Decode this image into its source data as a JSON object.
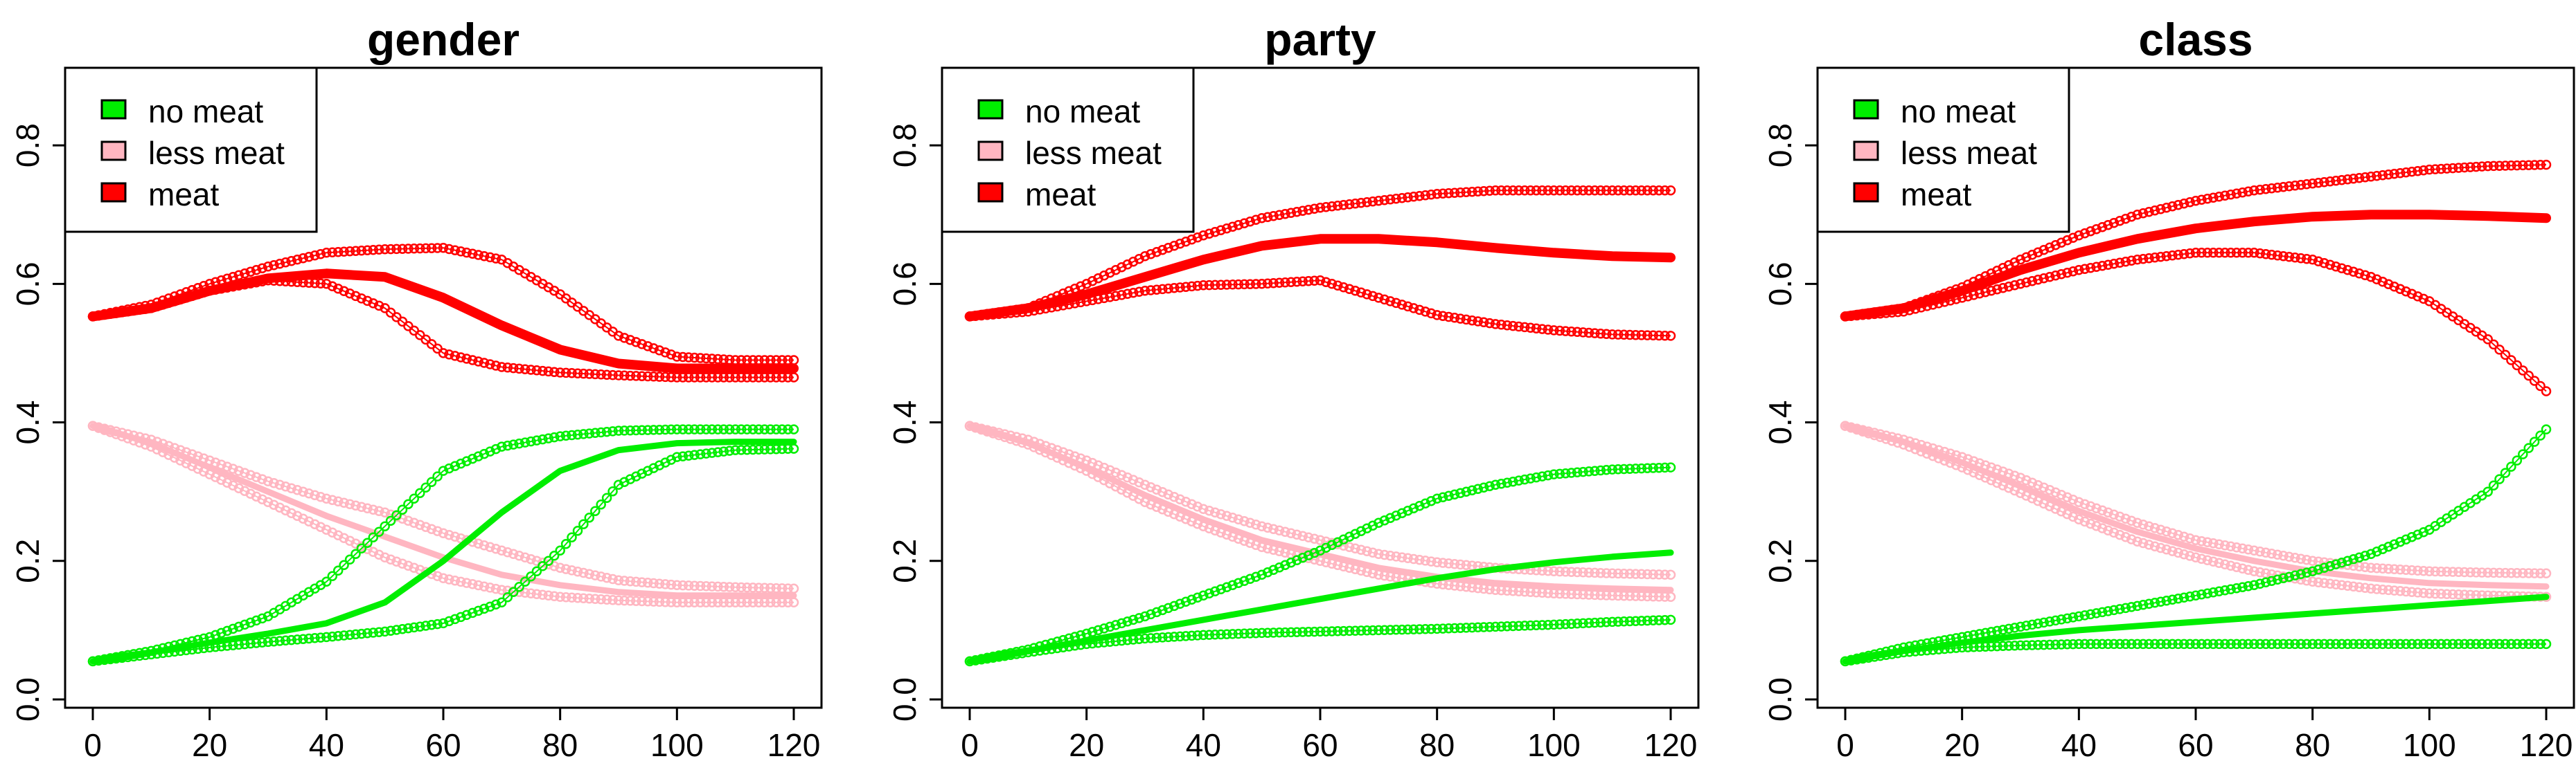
{
  "colors": {
    "no_meat": "#00ee00",
    "less_meat": "#ffb6c1",
    "meat": "#ff0000"
  },
  "chart_data": [
    {
      "type": "line",
      "title": "gender",
      "xlim": [
        0,
        120
      ],
      "ylim": [
        0,
        0.9
      ],
      "xticks": [
        0,
        20,
        40,
        60,
        80,
        100,
        120
      ],
      "yticks": [
        0.0,
        0.2,
        0.4,
        0.6,
        0.8
      ],
      "ytick_labels": [
        "0.0",
        "0.2",
        "0.4",
        "0.6",
        "0.8"
      ],
      "legend": {
        "placement": "top-left",
        "entries": [
          {
            "label": "no meat",
            "color": "#00ee00"
          },
          {
            "label": "less meat",
            "color": "#ffb6c1"
          },
          {
            "label": "meat",
            "color": "#ff0000"
          }
        ]
      },
      "series": [
        {
          "name": "meat",
          "style": "bold",
          "color": "#ff0000",
          "x": [
            0,
            10,
            20,
            30,
            40,
            50,
            60,
            70,
            80,
            90,
            100,
            110,
            120
          ],
          "y": [
            0.553,
            0.565,
            0.59,
            0.608,
            0.615,
            0.61,
            0.58,
            0.54,
            0.505,
            0.485,
            0.478,
            0.478,
            0.478
          ]
        },
        {
          "name": "meat",
          "style": "circles",
          "color": "#ff0000",
          "x": [
            0,
            10,
            20,
            30,
            40,
            50,
            60,
            70,
            80,
            90,
            100,
            110,
            120
          ],
          "y": [
            0.553,
            0.57,
            0.6,
            0.625,
            0.645,
            0.65,
            0.652,
            0.635,
            0.585,
            0.525,
            0.495,
            0.49,
            0.49
          ]
        },
        {
          "name": "meat",
          "style": "circles",
          "color": "#ff0000",
          "x": [
            0,
            10,
            20,
            30,
            40,
            50,
            60,
            70,
            80,
            90,
            100,
            110,
            120
          ],
          "y": [
            0.553,
            0.565,
            0.59,
            0.605,
            0.6,
            0.565,
            0.5,
            0.48,
            0.472,
            0.468,
            0.465,
            0.465,
            0.465
          ]
        },
        {
          "name": "less meat",
          "style": "circles",
          "color": "#ffb6c1",
          "x": [
            0,
            10,
            20,
            30,
            40,
            50,
            60,
            70,
            80,
            90,
            100,
            110,
            120
          ],
          "y": [
            0.395,
            0.375,
            0.345,
            0.315,
            0.29,
            0.27,
            0.24,
            0.215,
            0.19,
            0.172,
            0.165,
            0.162,
            0.16
          ]
        },
        {
          "name": "less meat",
          "style": "bold",
          "color": "#ffb6c1",
          "x": [
            0,
            10,
            20,
            30,
            40,
            50,
            60,
            70,
            80,
            90,
            100,
            110,
            120
          ],
          "y": [
            0.395,
            0.37,
            0.335,
            0.3,
            0.265,
            0.235,
            0.205,
            0.18,
            0.165,
            0.155,
            0.15,
            0.15,
            0.15
          ]
        },
        {
          "name": "less meat",
          "style": "circles",
          "color": "#ffb6c1",
          "x": [
            0,
            10,
            20,
            30,
            40,
            50,
            60,
            70,
            80,
            90,
            100,
            110,
            120
          ],
          "y": [
            0.395,
            0.365,
            0.325,
            0.285,
            0.245,
            0.205,
            0.175,
            0.158,
            0.148,
            0.143,
            0.14,
            0.14,
            0.14
          ]
        },
        {
          "name": "no meat",
          "style": "circles",
          "color": "#00ee00",
          "x": [
            0,
            10,
            20,
            30,
            40,
            50,
            60,
            70,
            80,
            90,
            100,
            110,
            120
          ],
          "y": [
            0.055,
            0.07,
            0.09,
            0.12,
            0.17,
            0.25,
            0.33,
            0.365,
            0.38,
            0.388,
            0.39,
            0.39,
            0.39
          ]
        },
        {
          "name": "no meat",
          "style": "bold",
          "color": "#00ee00",
          "x": [
            0,
            10,
            20,
            30,
            40,
            50,
            60,
            70,
            80,
            90,
            100,
            110,
            120
          ],
          "y": [
            0.055,
            0.068,
            0.082,
            0.095,
            0.11,
            0.14,
            0.2,
            0.27,
            0.33,
            0.36,
            0.37,
            0.372,
            0.372
          ]
        },
        {
          "name": "no meat",
          "style": "circles",
          "color": "#00ee00",
          "x": [
            0,
            10,
            20,
            30,
            40,
            50,
            60,
            70,
            80,
            90,
            100,
            110,
            120
          ],
          "y": [
            0.055,
            0.065,
            0.075,
            0.083,
            0.09,
            0.098,
            0.11,
            0.14,
            0.215,
            0.31,
            0.35,
            0.36,
            0.362
          ]
        }
      ]
    },
    {
      "type": "line",
      "title": "party",
      "xlim": [
        0,
        120
      ],
      "ylim": [
        0,
        0.9
      ],
      "xticks": [
        0,
        20,
        40,
        60,
        80,
        100,
        120
      ],
      "yticks": [
        0.0,
        0.2,
        0.4,
        0.6,
        0.8
      ],
      "ytick_labels": [
        "0.0",
        "0.2",
        "0.4",
        "0.6",
        "0.8"
      ],
      "legend": {
        "placement": "top-left",
        "entries": [
          {
            "label": "no meat",
            "color": "#00ee00"
          },
          {
            "label": "less meat",
            "color": "#ffb6c1"
          },
          {
            "label": "meat",
            "color": "#ff0000"
          }
        ]
      },
      "series": [
        {
          "name": "meat",
          "style": "circles",
          "color": "#ff0000",
          "x": [
            0,
            10,
            20,
            30,
            40,
            50,
            60,
            70,
            80,
            90,
            100,
            110,
            120
          ],
          "y": [
            0.553,
            0.565,
            0.6,
            0.64,
            0.67,
            0.695,
            0.71,
            0.72,
            0.73,
            0.735,
            0.735,
            0.735,
            0.735
          ]
        },
        {
          "name": "meat",
          "style": "bold",
          "color": "#ff0000",
          "x": [
            0,
            10,
            20,
            30,
            40,
            50,
            60,
            70,
            80,
            90,
            100,
            110,
            120
          ],
          "y": [
            0.553,
            0.565,
            0.585,
            0.61,
            0.635,
            0.655,
            0.665,
            0.665,
            0.66,
            0.652,
            0.645,
            0.64,
            0.638
          ]
        },
        {
          "name": "meat",
          "style": "circles",
          "color": "#ff0000",
          "x": [
            0,
            10,
            20,
            30,
            40,
            50,
            60,
            70,
            80,
            90,
            100,
            110,
            120
          ],
          "y": [
            0.553,
            0.56,
            0.575,
            0.59,
            0.598,
            0.6,
            0.605,
            0.58,
            0.555,
            0.542,
            0.533,
            0.527,
            0.525
          ]
        },
        {
          "name": "less meat",
          "style": "circles",
          "color": "#ffb6c1",
          "x": [
            0,
            10,
            20,
            30,
            40,
            50,
            60,
            70,
            80,
            90,
            100,
            110,
            120
          ],
          "y": [
            0.395,
            0.375,
            0.345,
            0.31,
            0.275,
            0.25,
            0.23,
            0.21,
            0.198,
            0.19,
            0.185,
            0.182,
            0.18
          ]
        },
        {
          "name": "less meat",
          "style": "bold",
          "color": "#ffb6c1",
          "x": [
            0,
            10,
            20,
            30,
            40,
            50,
            60,
            70,
            80,
            90,
            100,
            110,
            120
          ],
          "y": [
            0.395,
            0.37,
            0.335,
            0.295,
            0.26,
            0.23,
            0.21,
            0.19,
            0.177,
            0.168,
            0.163,
            0.16,
            0.158
          ]
        },
        {
          "name": "less meat",
          "style": "circles",
          "color": "#ffb6c1",
          "x": [
            0,
            10,
            20,
            30,
            40,
            50,
            60,
            70,
            80,
            90,
            100,
            110,
            120
          ],
          "y": [
            0.395,
            0.368,
            0.33,
            0.285,
            0.25,
            0.22,
            0.2,
            0.18,
            0.167,
            0.158,
            0.153,
            0.15,
            0.148
          ]
        },
        {
          "name": "no meat",
          "style": "circles",
          "color": "#00ee00",
          "x": [
            0,
            10,
            20,
            30,
            40,
            50,
            60,
            70,
            80,
            90,
            100,
            110,
            120
          ],
          "y": [
            0.055,
            0.072,
            0.095,
            0.12,
            0.15,
            0.18,
            0.215,
            0.255,
            0.29,
            0.31,
            0.325,
            0.332,
            0.335
          ]
        },
        {
          "name": "no meat",
          "style": "bold",
          "color": "#00ee00",
          "x": [
            0,
            10,
            20,
            30,
            40,
            50,
            60,
            70,
            80,
            90,
            100,
            110,
            120
          ],
          "y": [
            0.055,
            0.07,
            0.085,
            0.1,
            0.115,
            0.13,
            0.145,
            0.16,
            0.175,
            0.188,
            0.198,
            0.206,
            0.212
          ]
        },
        {
          "name": "no meat",
          "style": "circles",
          "color": "#00ee00",
          "x": [
            0,
            10,
            20,
            30,
            40,
            50,
            60,
            70,
            80,
            90,
            100,
            110,
            120
          ],
          "y": [
            0.055,
            0.068,
            0.08,
            0.088,
            0.093,
            0.096,
            0.098,
            0.1,
            0.102,
            0.105,
            0.108,
            0.112,
            0.115
          ]
        }
      ]
    },
    {
      "type": "line",
      "title": "class",
      "xlim": [
        0,
        120
      ],
      "ylim": [
        0,
        0.9
      ],
      "xticks": [
        0,
        20,
        40,
        60,
        80,
        100,
        120
      ],
      "yticks": [
        0.0,
        0.2,
        0.4,
        0.6,
        0.8
      ],
      "ytick_labels": [
        "0.0",
        "0.2",
        "0.4",
        "0.6",
        "0.8"
      ],
      "legend": {
        "placement": "top-left",
        "entries": [
          {
            "label": "no meat",
            "color": "#00ee00"
          },
          {
            "label": "less meat",
            "color": "#ffb6c1"
          },
          {
            "label": "meat",
            "color": "#ff0000"
          }
        ]
      },
      "series": [
        {
          "name": "meat",
          "style": "circles",
          "color": "#ff0000",
          "x": [
            0,
            10,
            20,
            30,
            40,
            50,
            60,
            70,
            80,
            90,
            100,
            110,
            120
          ],
          "y": [
            0.553,
            0.565,
            0.595,
            0.635,
            0.67,
            0.7,
            0.72,
            0.735,
            0.745,
            0.755,
            0.765,
            0.77,
            0.772
          ]
        },
        {
          "name": "meat",
          "style": "bold",
          "color": "#ff0000",
          "x": [
            0,
            10,
            20,
            30,
            40,
            50,
            60,
            70,
            80,
            90,
            100,
            110,
            120
          ],
          "y": [
            0.553,
            0.565,
            0.59,
            0.62,
            0.645,
            0.665,
            0.68,
            0.69,
            0.697,
            0.7,
            0.7,
            0.698,
            0.695
          ]
        },
        {
          "name": "meat",
          "style": "circles",
          "color": "#ff0000",
          "x": [
            0,
            10,
            20,
            30,
            40,
            50,
            60,
            70,
            80,
            90,
            100,
            110,
            120
          ],
          "y": [
            0.553,
            0.56,
            0.58,
            0.6,
            0.62,
            0.635,
            0.645,
            0.645,
            0.635,
            0.61,
            0.575,
            0.52,
            0.445
          ]
        },
        {
          "name": "less meat",
          "style": "circles",
          "color": "#ffb6c1",
          "x": [
            0,
            10,
            20,
            30,
            40,
            50,
            60,
            70,
            80,
            90,
            100,
            110,
            120
          ],
          "y": [
            0.395,
            0.375,
            0.35,
            0.32,
            0.285,
            0.255,
            0.23,
            0.215,
            0.2,
            0.19,
            0.185,
            0.183,
            0.182
          ]
        },
        {
          "name": "less meat",
          "style": "bold",
          "color": "#ffb6c1",
          "x": [
            0,
            10,
            20,
            30,
            40,
            50,
            60,
            70,
            80,
            90,
            100,
            110,
            120
          ],
          "y": [
            0.395,
            0.372,
            0.342,
            0.308,
            0.272,
            0.242,
            0.218,
            0.2,
            0.185,
            0.175,
            0.168,
            0.165,
            0.163
          ]
        },
        {
          "name": "less meat",
          "style": "circles",
          "color": "#ffb6c1",
          "x": [
            0,
            10,
            20,
            30,
            40,
            50,
            60,
            70,
            80,
            90,
            100,
            110,
            120
          ],
          "y": [
            0.395,
            0.368,
            0.335,
            0.298,
            0.26,
            0.228,
            0.205,
            0.185,
            0.17,
            0.16,
            0.153,
            0.15,
            0.148
          ]
        },
        {
          "name": "no meat",
          "style": "circles",
          "color": "#00ee00",
          "x": [
            0,
            10,
            20,
            30,
            40,
            50,
            60,
            70,
            80,
            90,
            100,
            110,
            120
          ],
          "y": [
            0.055,
            0.075,
            0.09,
            0.105,
            0.12,
            0.135,
            0.15,
            0.165,
            0.185,
            0.21,
            0.245,
            0.3,
            0.39
          ]
        },
        {
          "name": "no meat",
          "style": "bold",
          "color": "#00ee00",
          "x": [
            0,
            10,
            20,
            30,
            40,
            50,
            60,
            70,
            80,
            90,
            100,
            110,
            120
          ],
          "y": [
            0.055,
            0.07,
            0.082,
            0.092,
            0.1,
            0.106,
            0.112,
            0.118,
            0.124,
            0.13,
            0.136,
            0.142,
            0.148
          ]
        },
        {
          "name": "no meat",
          "style": "circles",
          "color": "#00ee00",
          "x": [
            0,
            10,
            20,
            30,
            40,
            50,
            60,
            70,
            80,
            90,
            100,
            110,
            120
          ],
          "y": [
            0.055,
            0.068,
            0.075,
            0.078,
            0.08,
            0.08,
            0.08,
            0.08,
            0.08,
            0.08,
            0.08,
            0.08,
            0.08
          ]
        }
      ]
    }
  ]
}
